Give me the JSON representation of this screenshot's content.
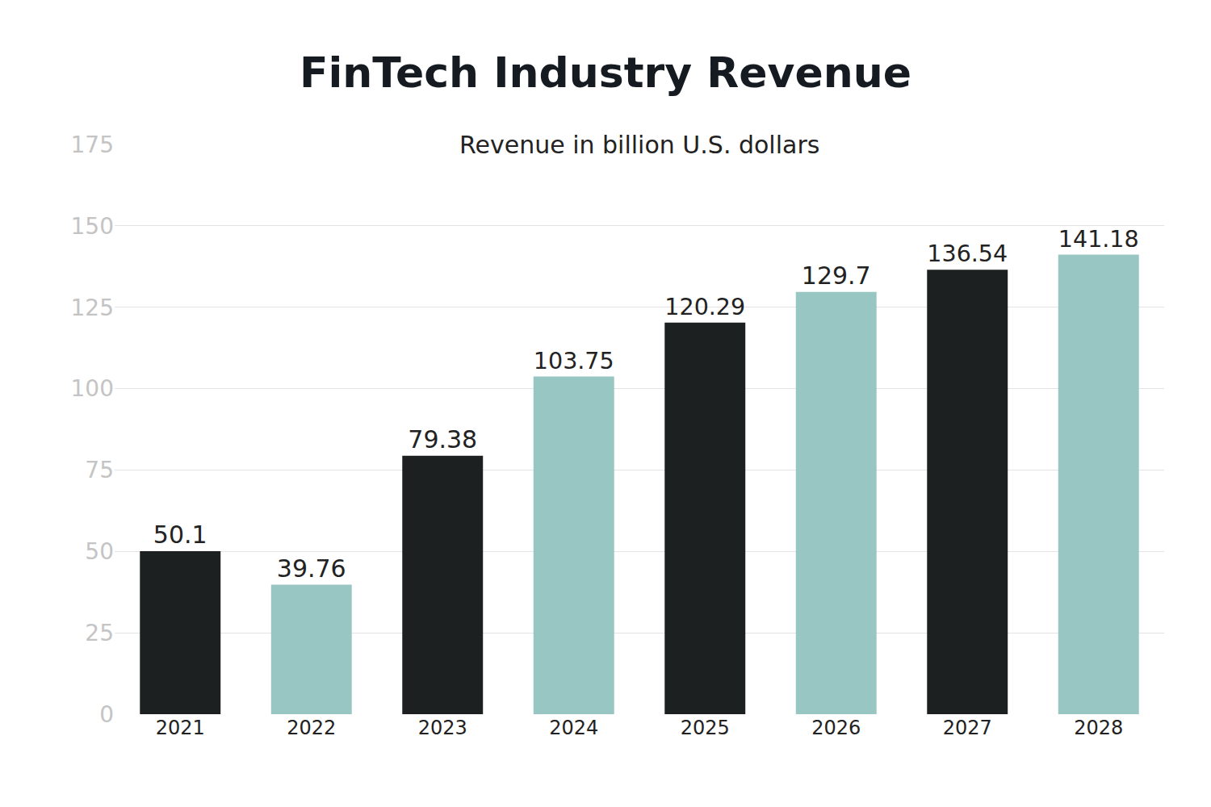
{
  "chart_data": {
    "type": "bar",
    "title": "FinTech Industry Revenue",
    "subtitle": "Revenue in billion U.S. dollars",
    "categories": [
      "2021",
      "2022",
      "2023",
      "2024",
      "2025",
      "2026",
      "2027",
      "2028"
    ],
    "values": [
      50.1,
      39.76,
      79.38,
      103.75,
      120.29,
      129.7,
      136.54,
      141.18
    ],
    "colors": [
      "#1c2021",
      "#98c6c3",
      "#1c2021",
      "#98c6c3",
      "#1c2021",
      "#98c6c3",
      "#1c2021",
      "#98c6c3"
    ],
    "ylim": [
      0,
      175
    ],
    "yticks": [
      0,
      25,
      50,
      75,
      100,
      125,
      150,
      175
    ],
    "grid": true,
    "data_labels": true
  }
}
